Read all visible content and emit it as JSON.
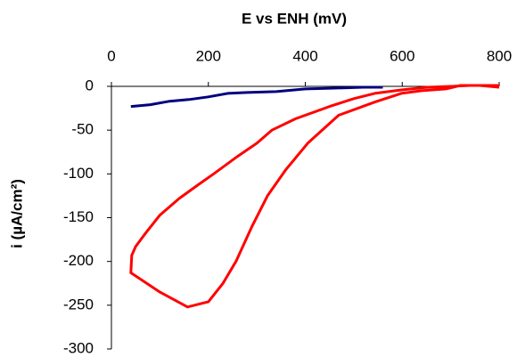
{
  "chart_data": {
    "type": "line",
    "xlabel": "E vs ENH (mV)",
    "ylabel": "i (µA/cm²)",
    "xlim": [
      0,
      800
    ],
    "xticks": [
      0,
      200,
      400,
      600,
      800
    ],
    "ylim": [
      -300,
      0
    ],
    "yticks": [
      0,
      -50,
      -100,
      -150,
      -200,
      -250,
      -300
    ],
    "xaxis_position": "top",
    "series": [
      {
        "color": "#00007f",
        "x": [
          40,
          80,
          120,
          160,
          200,
          240,
          280,
          340,
          400,
          460,
          520,
          560
        ],
        "values": [
          -23,
          -21,
          -17,
          -15,
          -12,
          -8,
          -7,
          -6,
          -3,
          -2,
          -1,
          -1
        ]
      },
      {
        "color": "#ff0000",
        "x": [
          800,
          760,
          720,
          690,
          640,
          598,
          543,
          469,
          405,
          360,
          322,
          290,
          257,
          230,
          200,
          157,
          100,
          40,
          42,
          50,
          70,
          100,
          140,
          180,
          211,
          260,
          300,
          331,
          380,
          450,
          500,
          543,
          600,
          653,
          700,
          740,
          800
        ],
        "values": [
          -1,
          1,
          1,
          -3,
          -5,
          -8,
          -18,
          -33,
          -65,
          -95,
          -125,
          -160,
          -200,
          -225,
          -246,
          -252,
          -235,
          -213,
          -193,
          -183,
          -168,
          -147,
          -128,
          -112,
          -100,
          -80,
          -65,
          -50,
          -37,
          -23,
          -14,
          -8,
          -4,
          -1,
          0,
          1,
          1
        ]
      }
    ]
  }
}
